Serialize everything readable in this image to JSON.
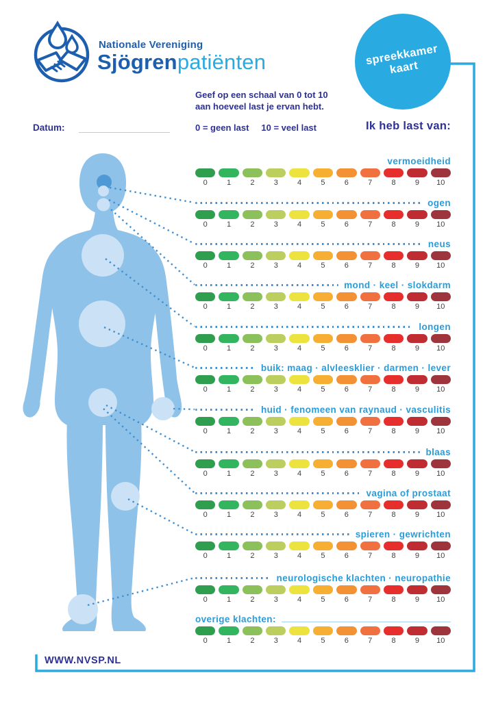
{
  "header": {
    "org_small": "Nationale Vereniging",
    "org_bold": "Sjögren",
    "org_light": "patiënten",
    "badge_line1": "spreekkamer",
    "badge_line2": "kaart",
    "instruction_line1": "Geef op een schaal van 0 tot 10",
    "instruction_line2": "aan hoeveel last je ervan hebt.",
    "datum_label": "Datum:",
    "legend_left": "0 = geen last",
    "legend_right": "10 = veel last",
    "list_title": "Ik heb last van:"
  },
  "scale": {
    "ticks": [
      "0",
      "1",
      "2",
      "3",
      "4",
      "5",
      "6",
      "7",
      "8",
      "9",
      "10"
    ],
    "colors": [
      "#2f9e4e",
      "#33b55f",
      "#8cc05a",
      "#bcce5e",
      "#ece33e",
      "#f6ae33",
      "#f39135",
      "#f17040",
      "#e62e2d",
      "#bf2d33",
      "#9e343c"
    ]
  },
  "rows": [
    {
      "label": "vermoeidheid",
      "connector": "none"
    },
    {
      "label": "ogen",
      "connector": "dots"
    },
    {
      "label": "neus",
      "connector": "dots"
    },
    {
      "label": "mond · keel · slokdarm",
      "connector": "dots"
    },
    {
      "label": "longen",
      "connector": "dots"
    },
    {
      "label": "buik: maag · alvleesklier · darmen · lever",
      "connector": "dots"
    },
    {
      "label": "huid · fenomeen van raynaud · vasculitis",
      "connector": "dots"
    },
    {
      "label": "blaas",
      "connector": "dots"
    },
    {
      "label": "vagina of prostaat",
      "connector": "dots"
    },
    {
      "label": "spieren · gewrichten",
      "connector": "dots"
    },
    {
      "label": "neurologische klachten · neuropathie",
      "connector": "dots"
    },
    {
      "label": "overige klachten:",
      "connector": "line"
    }
  ],
  "footer": {
    "website": "WWW.NVSP.NL"
  },
  "colors": {
    "body": "#8fc2e9",
    "body_spot": "#cbe1f5",
    "body_spot_dark": "#4f9ad6",
    "connector": "#3f8fd2",
    "label_blue": "#2b9cd8",
    "ink_blue": "#2e3192",
    "brand_blue": "#1d5fae",
    "accent_blue": "#29abe2"
  }
}
